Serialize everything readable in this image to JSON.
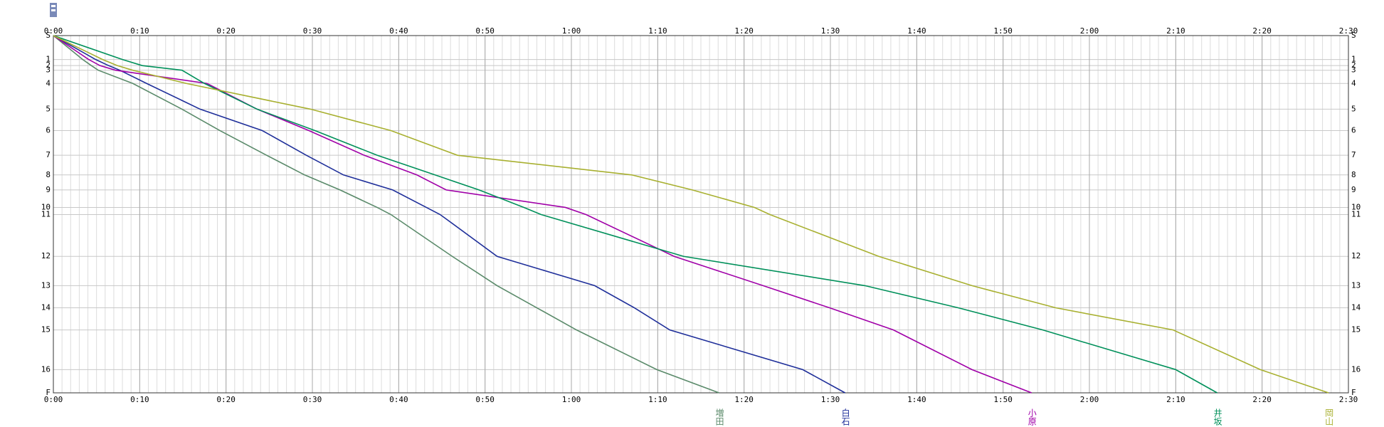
{
  "chart_data": {
    "type": "line",
    "categories": [
      "S",
      "1",
      "2",
      "3",
      "4",
      "5",
      "6",
      "7",
      "8",
      "9",
      "10",
      "11",
      "12",
      "13",
      "14",
      "15",
      "16",
      "F"
    ],
    "xlim": [
      0,
      150
    ],
    "xticks": [
      {
        "value": 0,
        "label": "0:00"
      },
      {
        "value": 10,
        "label": "0:10"
      },
      {
        "value": 20,
        "label": "0:20"
      },
      {
        "value": 30,
        "label": "0:30"
      },
      {
        "value": 40,
        "label": "0:40"
      },
      {
        "value": 50,
        "label": "0:50"
      },
      {
        "value": 60,
        "label": "1:00"
      },
      {
        "value": 70,
        "label": "1:10"
      },
      {
        "value": 80,
        "label": "1:20"
      },
      {
        "value": 90,
        "label": "1:30"
      },
      {
        "value": 100,
        "label": "1:40"
      },
      {
        "value": 110,
        "label": "1:50"
      },
      {
        "value": 120,
        "label": "2:00"
      },
      {
        "value": 130,
        "label": "2:10"
      },
      {
        "value": 140,
        "label": "2:20"
      },
      {
        "value": 150,
        "label": "2:30"
      }
    ],
    "grid": true,
    "series": [
      {
        "name": "増田",
        "color": "#5a8a6a",
        "values": [
          0,
          3.4,
          4.4,
          5.2,
          9.2,
          14.9,
          19.3,
          24.7,
          29.1,
          33.2,
          37.5,
          39.1,
          46.2,
          51.4,
          56.0,
          60.6,
          69.9,
          77.1
        ]
      },
      {
        "name": "白石",
        "color": "#1f2f9a",
        "values": [
          0,
          4.9,
          6.4,
          7.7,
          10.8,
          17.0,
          24.2,
          29.3,
          33.6,
          39.3,
          43.2,
          44.8,
          51.4,
          62.7,
          67.3,
          71.4,
          86.8,
          91.7
        ]
      },
      {
        "name": "小原",
        "color": "#a000a8",
        "values": [
          0,
          4.1,
          5.4,
          7.2,
          17.8,
          23.6,
          29.6,
          36.0,
          42.1,
          45.5,
          59.3,
          61.7,
          71.9,
          82.2,
          89.9,
          97.3,
          106.4,
          113.3
        ]
      },
      {
        "name": "井坂",
        "color": "#00905a",
        "values": [
          0,
          8.0,
          10.3,
          14.9,
          17.5,
          23.6,
          30.3,
          37.5,
          44.2,
          49.3,
          54.5,
          56.5,
          73.0,
          94.0,
          104.8,
          114.6,
          130.0,
          134.8
        ]
      },
      {
        "name": "岡山",
        "color": "#a8b030",
        "values": [
          0,
          5.7,
          7.4,
          9.2,
          15.4,
          29.8,
          39.1,
          46.8,
          67.0,
          74.0,
          81.2,
          83.0,
          95.6,
          106.4,
          116.1,
          129.7,
          139.8,
          147.7
        ]
      }
    ]
  }
}
